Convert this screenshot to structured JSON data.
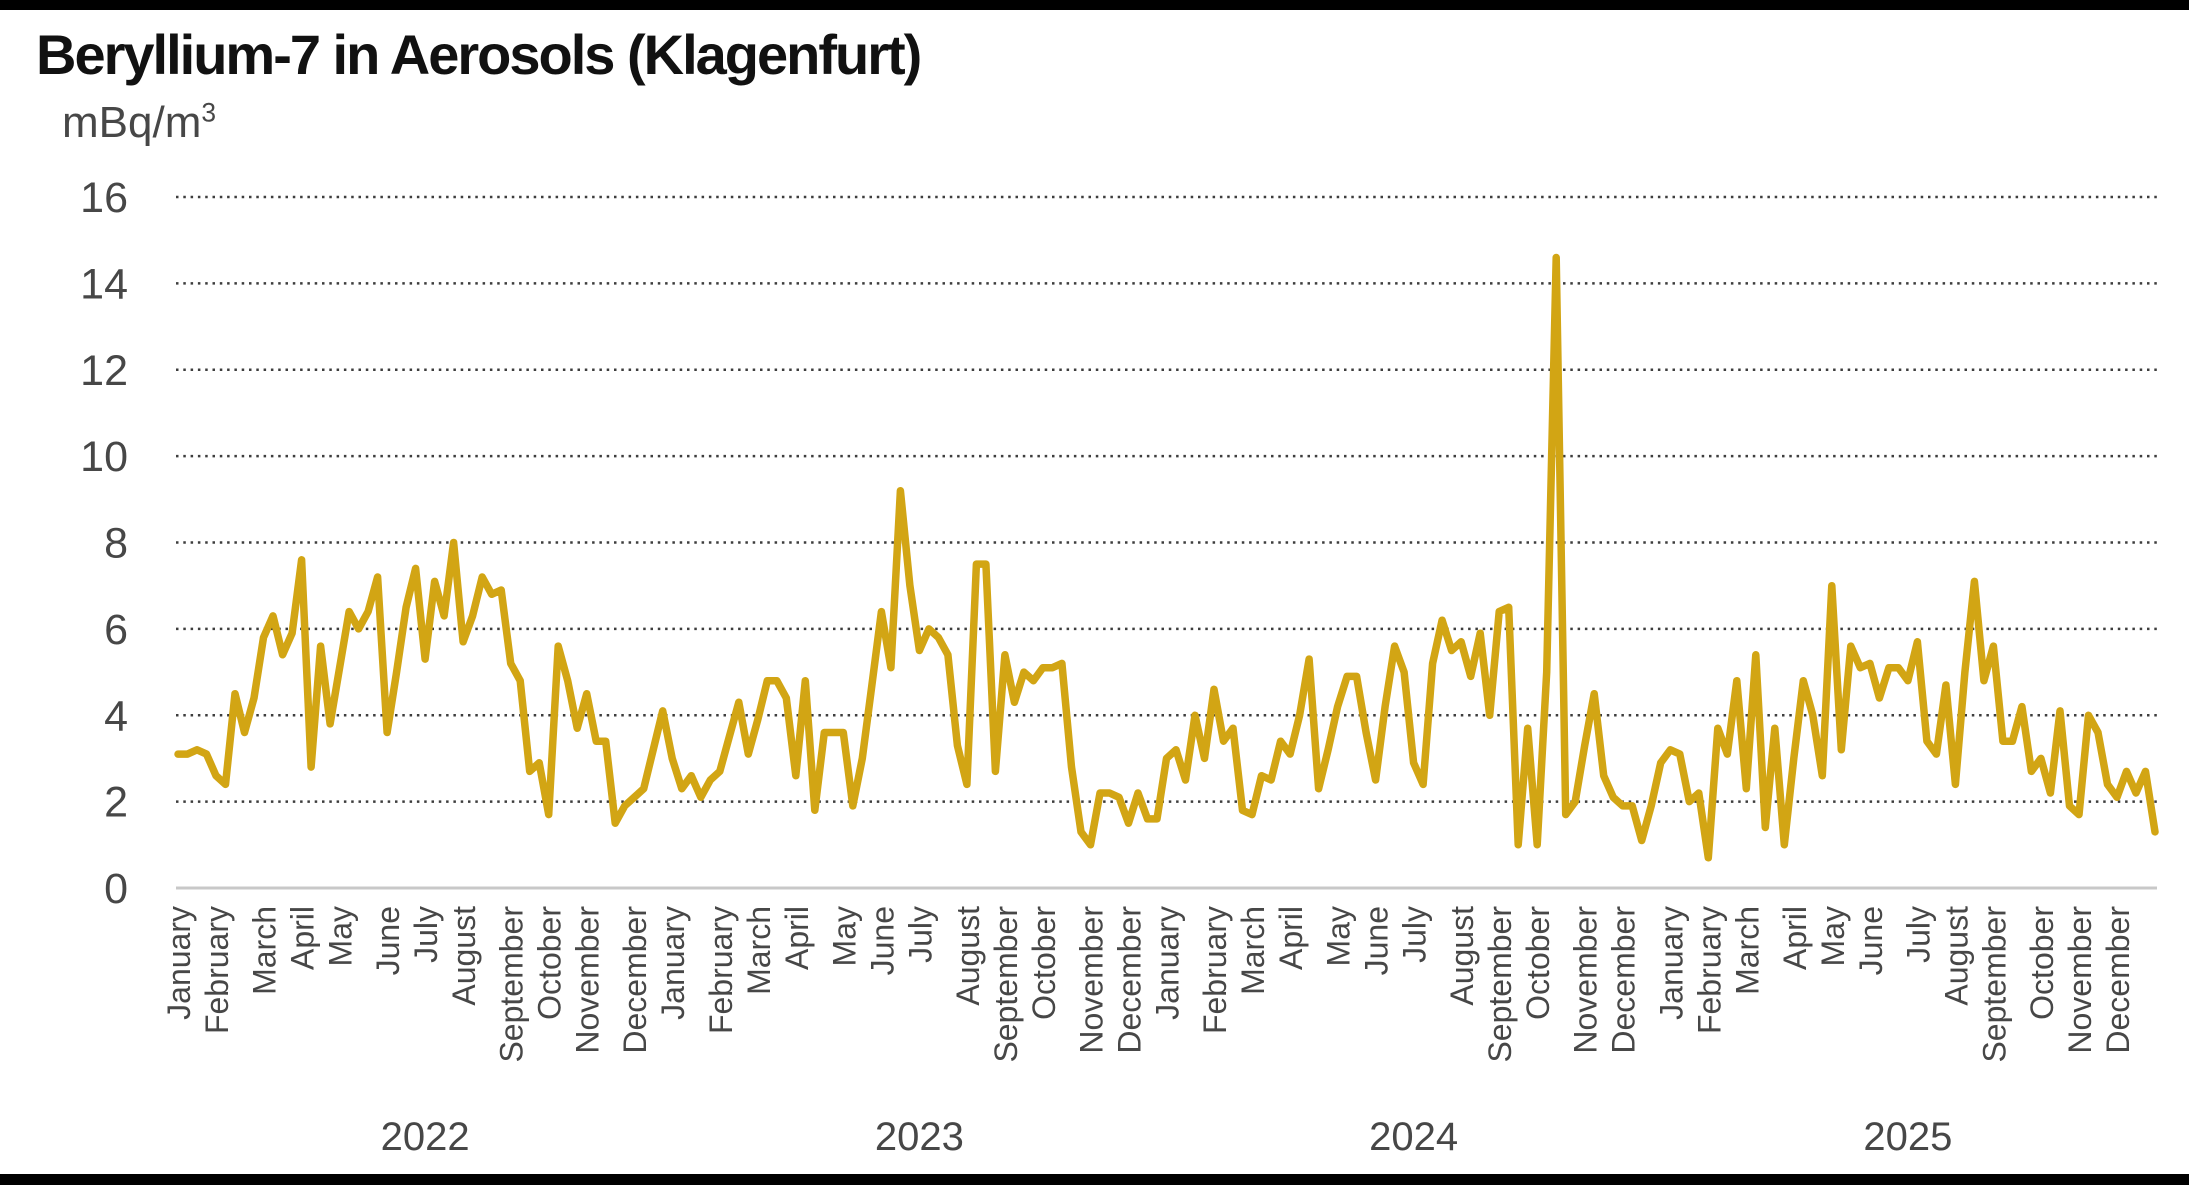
{
  "title": "Beryllium-7 in Aerosols (Klagenfurt)",
  "y_axis": {
    "unit_base": "mBq/m",
    "unit_exponent": "3",
    "tick_labels": [
      "0",
      "2",
      "4",
      "6",
      "8",
      "10",
      "12",
      "14",
      "16"
    ]
  },
  "x_axis": {
    "months": [
      "January",
      "February",
      "March",
      "April",
      "May",
      "June",
      "July",
      "August",
      "September",
      "October",
      "November",
      "December"
    ],
    "years": [
      "2022",
      "2023",
      "2024",
      "2025"
    ]
  },
  "chart_data": {
    "type": "line",
    "title": "Beryllium-7 in Aerosols (Klagenfurt)",
    "ylabel": "mBq/m³",
    "xlabel": "",
    "ylim": [
      0,
      16
    ],
    "yticks": [
      0,
      2,
      4,
      6,
      8,
      10,
      12,
      14,
      16
    ],
    "grid": "horizontal dotted",
    "legend_position": "none",
    "x_description": "Weekly aerosol samples, January 2022 through December 2025; x axis labelled by month and year",
    "series": [
      {
        "name": "Beryllium-7 activity concentration (mBq/m³)",
        "sampling": "weekly",
        "values_by_year": {
          "2022": [
            3.1,
            3.1,
            3.2,
            3.1,
            2.6,
            2.4,
            4.5,
            3.6,
            4.4,
            5.8,
            6.3,
            5.4,
            5.9,
            7.6,
            2.8,
            5.6,
            3.8,
            5.1,
            6.4,
            6.0,
            6.4,
            7.2,
            3.6,
            5.0,
            6.5,
            7.4,
            5.3,
            7.1,
            6.3,
            8.0,
            5.7,
            6.3,
            7.2,
            6.8,
            6.9,
            5.2,
            4.8,
            2.7,
            2.9,
            1.7,
            5.6,
            4.8,
            3.7,
            4.5,
            3.4,
            3.4,
            1.5,
            1.9,
            2.1,
            2.3,
            3.2,
            4.1
          ],
          "2023": [
            3.0,
            2.3,
            2.6,
            2.1,
            2.5,
            2.7,
            3.5,
            4.3,
            3.1,
            3.9,
            4.8,
            4.8,
            4.4,
            2.6,
            4.8,
            1.8,
            3.6,
            3.6,
            3.6,
            1.9,
            3.0,
            4.7,
            6.4,
            5.1,
            9.2,
            7.0,
            5.5,
            6.0,
            5.8,
            5.4,
            3.3,
            2.4,
            7.5,
            7.5,
            2.7,
            5.4,
            4.3,
            5.0,
            4.8,
            5.1,
            5.1,
            5.2,
            2.8,
            1.3,
            1.0,
            2.2,
            2.2,
            2.1,
            1.5,
            2.2,
            1.6,
            1.6
          ],
          "2024": [
            3.0,
            3.2,
            2.5,
            4.0,
            3.0,
            4.6,
            3.4,
            3.7,
            1.8,
            1.7,
            2.6,
            2.5,
            3.4,
            3.1,
            4.0,
            5.3,
            2.3,
            3.2,
            4.2,
            4.9,
            4.9,
            3.6,
            2.5,
            4.2,
            5.6,
            5.0,
            2.9,
            2.4,
            5.2,
            6.2,
            5.5,
            5.7,
            4.9,
            5.9,
            4.0,
            6.4,
            6.5,
            1.0,
            3.7,
            1.0,
            5.0,
            14.6,
            1.7,
            2.0,
            3.3,
            4.5,
            2.6,
            2.1,
            1.9,
            1.9,
            1.1,
            1.9,
            2.9
          ],
          "2025": [
            3.2,
            3.1,
            2.0,
            2.2,
            0.7,
            3.7,
            3.1,
            4.8,
            2.3,
            5.4,
            1.4,
            3.7,
            1.0,
            3.0,
            4.8,
            4.0,
            2.6,
            7.0,
            3.2,
            5.6,
            5.1,
            5.2,
            4.4,
            5.1,
            5.1,
            4.8,
            5.7,
            3.4,
            3.1,
            4.7,
            2.4,
            5.0,
            7.1,
            4.8,
            5.6,
            3.4,
            3.4,
            4.2,
            2.7,
            3.0,
            2.2,
            4.1,
            1.9,
            1.7,
            4.0,
            3.6,
            2.4,
            2.1,
            2.7,
            2.2,
            2.7,
            1.3
          ]
        }
      }
    ],
    "annotations": {
      "max_value": 14.6,
      "min_value": 0.7
    }
  },
  "colors": {
    "line": "#D2A514",
    "axis_text": "#474747",
    "grid_dots": "#3D3D3D",
    "axis_line": "#C8C8C8",
    "title_text": "#111111",
    "background": "#FFFFFF"
  }
}
